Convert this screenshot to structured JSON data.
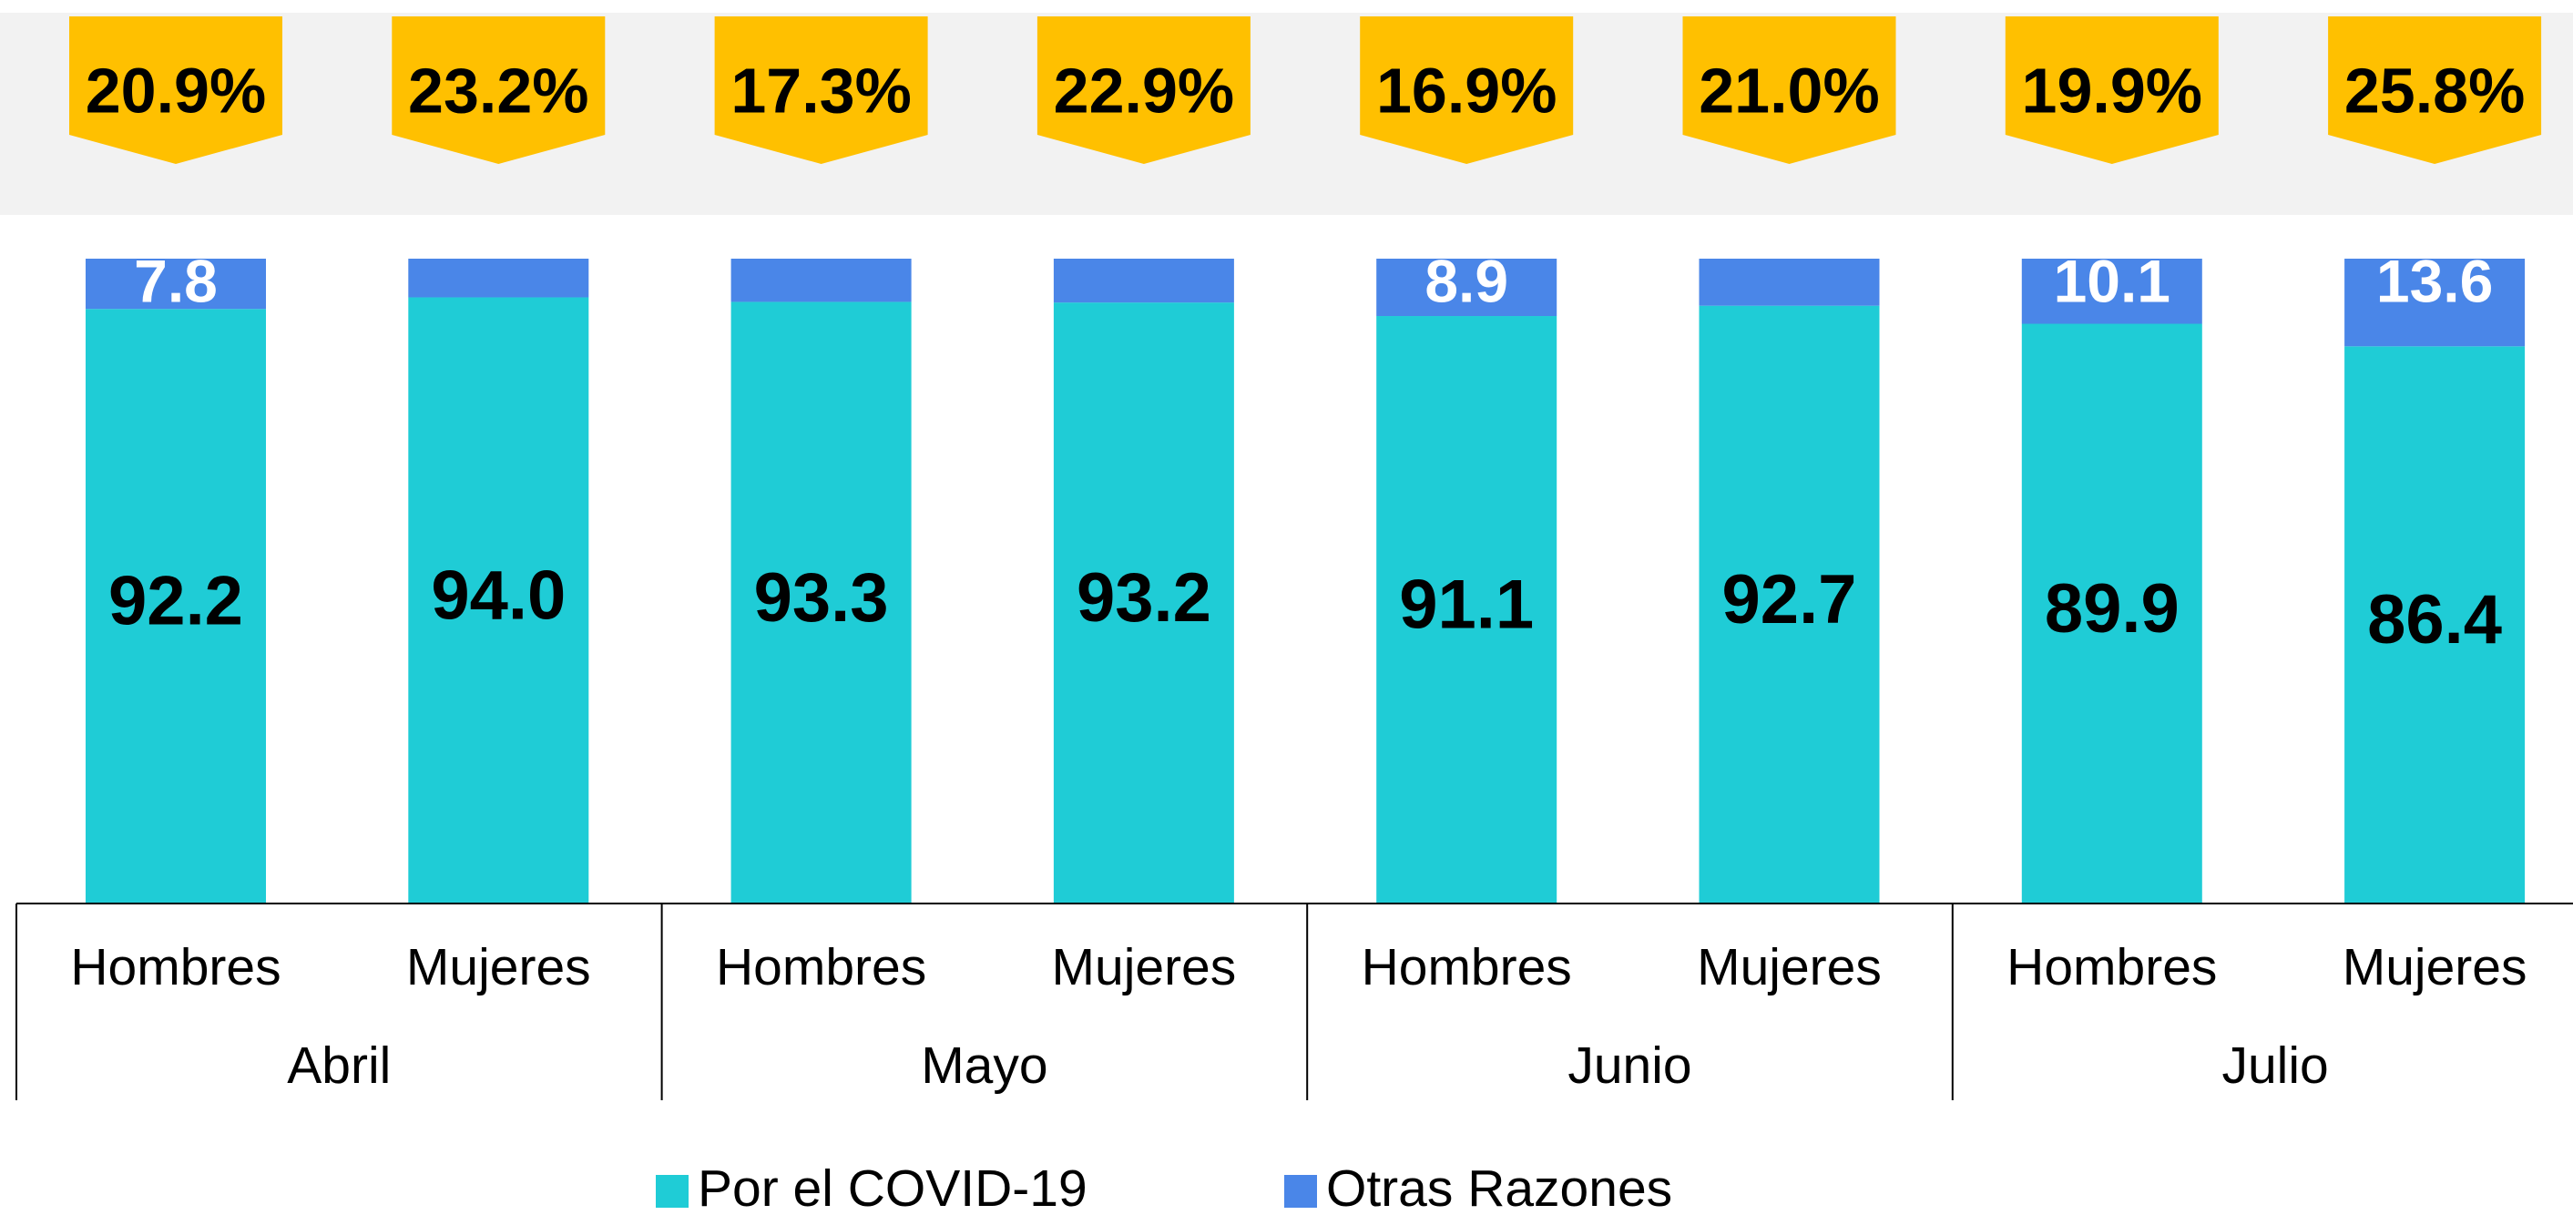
{
  "chart_data": {
    "type": "stacked_bar",
    "categories": [
      "Hombres",
      "Mujeres",
      "Hombres",
      "Mujeres",
      "Hombres",
      "Mujeres",
      "Hombres",
      "Mujeres"
    ],
    "groups": [
      "Abril",
      "Mayo",
      "Junio",
      "Julio"
    ],
    "series": [
      {
        "name": "Por el COVID-19",
        "color": "#1fccd6",
        "values": [
          92.2,
          94.0,
          93.3,
          93.2,
          91.1,
          92.7,
          89.9,
          86.4
        ],
        "value_labels": [
          "92.2",
          "94.0",
          "93.3",
          "93.2",
          "91.1",
          "92.7",
          "89.9",
          "86.4"
        ]
      },
      {
        "name": "Otras Razones",
        "color": "#4a86e8",
        "values": [
          7.8,
          6.0,
          6.7,
          6.8,
          8.9,
          7.3,
          10.1,
          13.6
        ],
        "value_labels": [
          "7.8",
          null,
          null,
          null,
          "8.9",
          null,
          "10.1",
          "13.6"
        ]
      }
    ],
    "banners": {
      "color": "#ffc000",
      "values": [
        20.9,
        23.2,
        17.3,
        22.9,
        16.9,
        21.0,
        19.9,
        25.8
      ],
      "value_labels": [
        "20.9%",
        "23.2%",
        "17.3%",
        "22.9%",
        "16.9%",
        "21.0%",
        "19.9%",
        "25.8%"
      ]
    },
    "ylim": [
      0,
      100
    ]
  }
}
